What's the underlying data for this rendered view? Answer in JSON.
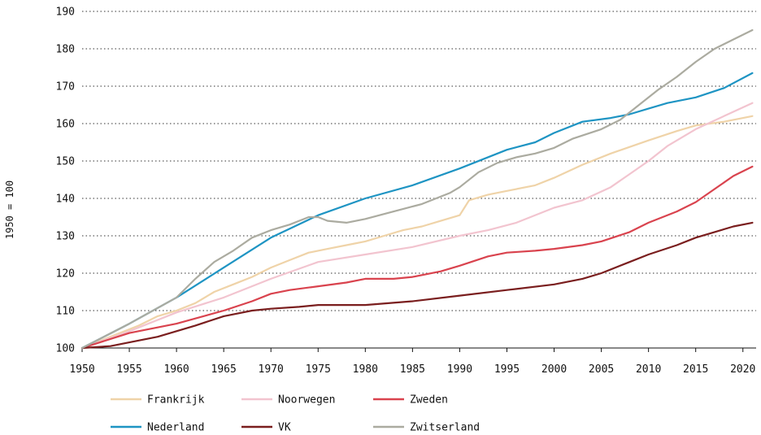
{
  "chart_data": {
    "type": "line",
    "title": "",
    "xlabel": "",
    "ylabel": "1950 = 100",
    "xlim": [
      1950,
      2021
    ],
    "ylim": [
      100,
      190
    ],
    "x_ticks": [
      1950,
      1955,
      1960,
      1965,
      1970,
      1975,
      1980,
      1985,
      1990,
      1995,
      2000,
      2005,
      2010,
      2015,
      2020
    ],
    "y_ticks": [
      100,
      110,
      120,
      130,
      140,
      150,
      160,
      170,
      180,
      190
    ],
    "grid": "horizontal dotted",
    "legend_position": "bottom",
    "series": [
      {
        "name": "Frankrijk",
        "color": "#efd3a8",
        "x": [
          1950,
          1953,
          1956,
          1958,
          1960,
          1962,
          1964,
          1966,
          1968,
          1970,
          1972,
          1974,
          1976,
          1978,
          1980,
          1982,
          1984,
          1986,
          1988,
          1990,
          1990.5,
          1991,
          1993,
          1995,
          1998,
          2000,
          2003,
          2006,
          2010,
          2013,
          2015,
          2018,
          2021
        ],
        "y": [
          100,
          103,
          106,
          108.5,
          110,
          112,
          115,
          117,
          119,
          121.5,
          123.5,
          125.5,
          126.5,
          127.5,
          128.5,
          130,
          131.5,
          132.5,
          134,
          135.5,
          137.5,
          139.5,
          141,
          142,
          143.5,
          145.5,
          149,
          152,
          155.5,
          158,
          159.5,
          160.5,
          162
        ]
      },
      {
        "name": "Noorwegen",
        "color": "#f2c4cf",
        "x": [
          1950,
          1955,
          1960,
          1965,
          1970,
          1975,
          1980,
          1985,
          1990,
          1993,
          1996,
          2000,
          2003,
          2006,
          2008,
          2010,
          2012,
          2015,
          2018,
          2021
        ],
        "y": [
          100,
          104.5,
          109.5,
          113.5,
          118.5,
          123,
          125,
          127,
          130,
          131.5,
          133.5,
          137.5,
          139.5,
          143,
          146.5,
          150,
          154,
          158.5,
          162,
          165.5
        ]
      },
      {
        "name": "Zweden",
        "color": "#d9434e",
        "x": [
          1950,
          1955,
          1960,
          1965,
          1968,
          1970,
          1972,
          1975,
          1978,
          1980,
          1983,
          1985,
          1988,
          1990,
          1993,
          1995,
          1998,
          2000,
          2003,
          2005,
          2008,
          2010,
          2013,
          2015,
          2017,
          2019,
          2021
        ],
        "y": [
          100,
          104,
          106.5,
          110,
          112.5,
          114.5,
          115.5,
          116.5,
          117.5,
          118.5,
          118.5,
          119,
          120.5,
          122,
          124.5,
          125.5,
          126,
          126.5,
          127.5,
          128.5,
          131,
          133.5,
          136.5,
          139,
          142.5,
          146,
          148.5
        ]
      },
      {
        "name": "Nederland",
        "color": "#1e94c3",
        "x": [
          1950,
          1955,
          1960,
          1965,
          1970,
          1975,
          1980,
          1985,
          1990,
          1995,
          1998,
          2000,
          2003,
          2006,
          2008,
          2010,
          2012,
          2015,
          2018,
          2021
        ],
        "y": [
          100,
          106.5,
          113.5,
          121.5,
          129.5,
          135.5,
          140,
          143.5,
          148,
          153,
          155,
          157.5,
          160.5,
          161.5,
          162.5,
          164,
          165.5,
          167,
          169.5,
          173.5
        ]
      },
      {
        "name": "VK",
        "color": "#7a1e1e",
        "x": [
          1950,
          1953,
          1955,
          1958,
          1960,
          1962,
          1965,
          1968,
          1970,
          1973,
          1975,
          1980,
          1985,
          1990,
          1995,
          2000,
          2003,
          2005,
          2008,
          2010,
          2013,
          2015,
          2017,
          2019,
          2021
        ],
        "y": [
          100,
          100.5,
          101.5,
          103,
          104.5,
          106,
          108.5,
          110,
          110.5,
          111,
          111.5,
          111.5,
          112.5,
          114,
          115.5,
          117,
          118.5,
          120,
          123,
          125,
          127.5,
          129.5,
          131,
          132.5,
          133.5
        ]
      },
      {
        "name": "Zwitserland",
        "color": "#ababa0",
        "x": [
          1950,
          1955,
          1960,
          1962,
          1964,
          1966,
          1968,
          1970,
          1972,
          1974,
          1975,
          1976,
          1978,
          1980,
          1983,
          1986,
          1989,
          1990,
          1992,
          1994,
          1996,
          1998,
          2000,
          2002,
          2005,
          2007,
          2009,
          2011,
          2013,
          2015,
          2017,
          2019,
          2021
        ],
        "y": [
          100,
          106.5,
          113.5,
          118.5,
          123,
          126,
          129.5,
          131.5,
          133,
          135,
          135,
          134,
          133.5,
          134.5,
          136.5,
          138.5,
          141.5,
          143,
          147,
          149.5,
          151,
          152,
          153.5,
          156,
          158.5,
          161,
          165,
          169,
          172.5,
          176.5,
          180,
          182.5,
          185
        ]
      }
    ]
  }
}
